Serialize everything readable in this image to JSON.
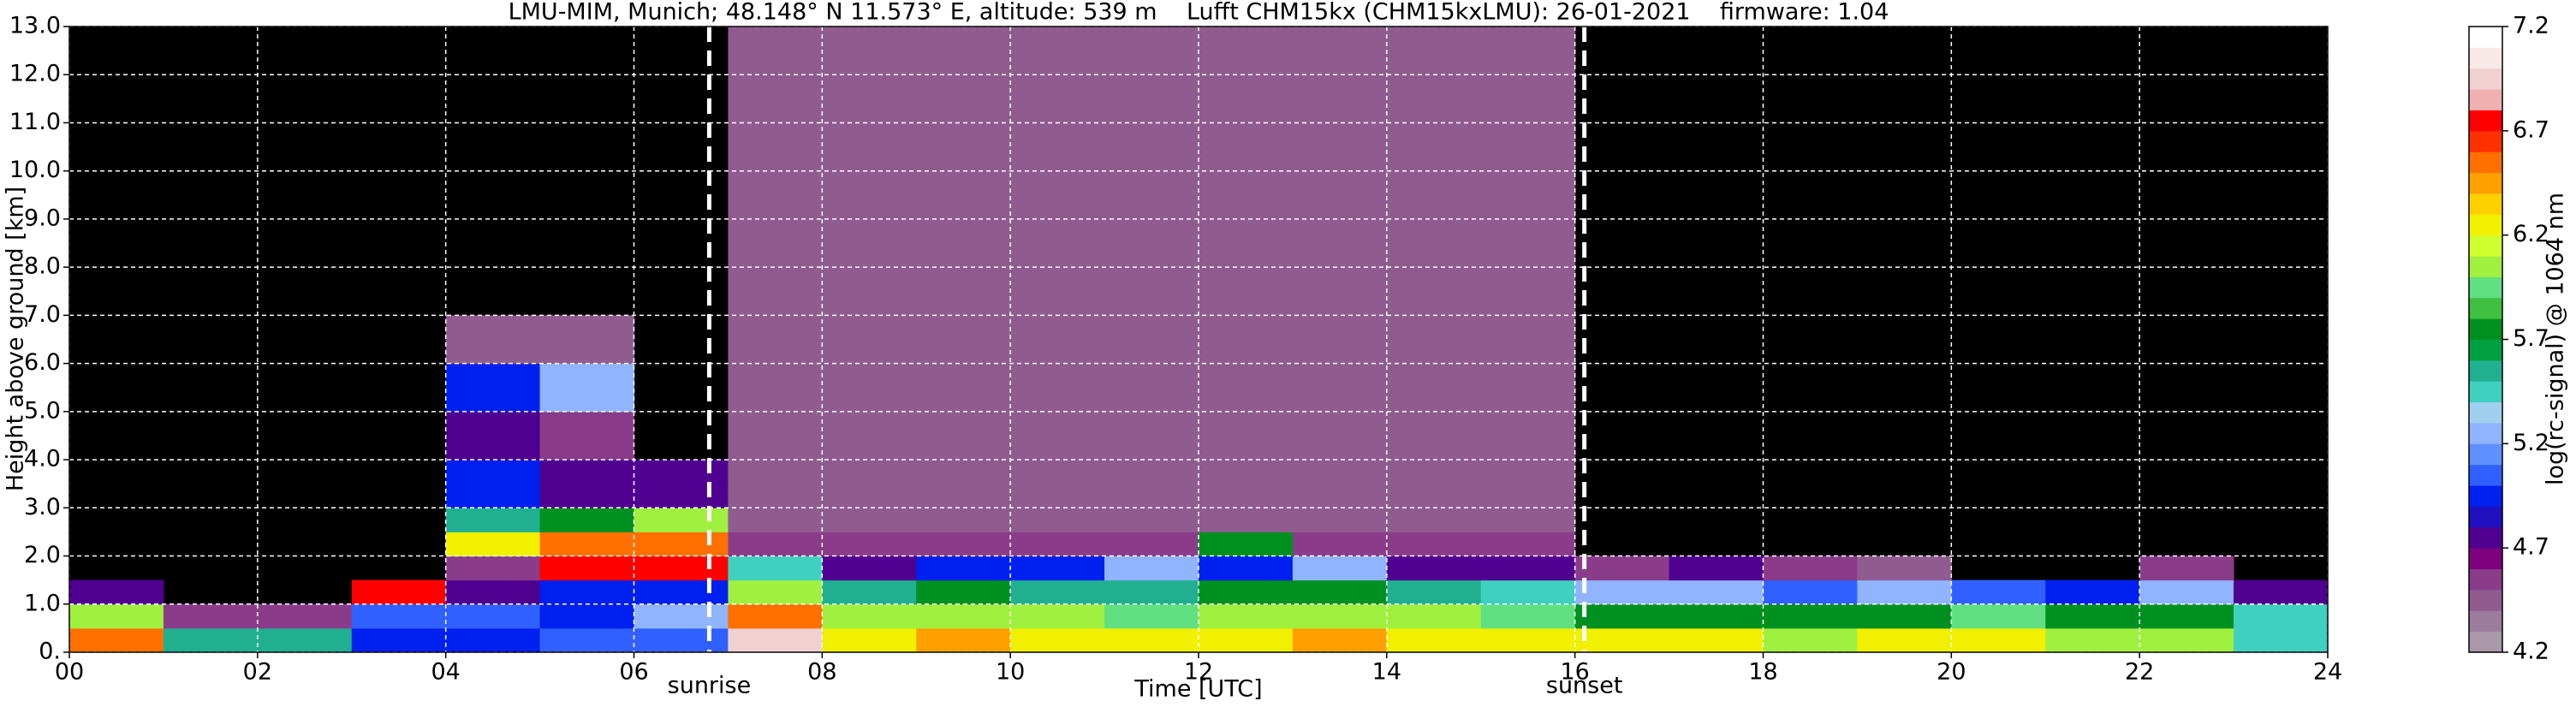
{
  "chart_data": {
    "type": "heatmap",
    "title": "LMU-MIM, Munich; 48.148° N 11.573° E, altitude: 539 m    Lufft CHM15kx (CHM15kxLMU): 26-01-2021    firmware: 1.04",
    "xlabel": "Time [UTC]",
    "ylabel": "Height above ground [km]",
    "colorbar_label": "log(rc-signal) @ 1064 nm",
    "x": [
      0,
      1,
      2,
      3,
      4,
      5,
      6,
      7,
      8,
      9,
      10,
      11,
      12,
      13,
      14,
      15,
      16,
      17,
      18,
      19,
      20,
      21,
      22,
      23,
      24
    ],
    "y": [
      0,
      0.5,
      1,
      1.5,
      2,
      2.5,
      3,
      4,
      5,
      6,
      7,
      9,
      11,
      13
    ],
    "z": [
      [
        6.5,
        5.6,
        5.6,
        5.0,
        5.0,
        5.1,
        5.1,
        6.9,
        6.3,
        6.4,
        6.3,
        6.2,
        6.3,
        6.4,
        6.3,
        6.2,
        6.3,
        6.2,
        6.1,
        6.2,
        6.2,
        6.1,
        6.0,
        5.5
      ],
      [
        6.0,
        4.6,
        4.6,
        5.1,
        5.1,
        5.0,
        5.2,
        6.5,
        6.0,
        6.1,
        6.0,
        5.9,
        6.0,
        6.1,
        6.0,
        5.9,
        5.8,
        5.8,
        5.7,
        5.8,
        5.9,
        5.8,
        5.7,
        5.4
      ],
      [
        4.8,
        null,
        null,
        6.8,
        4.8,
        4.9,
        4.9,
        6.0,
        5.6,
        5.7,
        5.6,
        5.6,
        5.7,
        5.8,
        5.6,
        5.5,
        5.2,
        5.3,
        5.1,
        5.2,
        5.1,
        5.0,
        5.2,
        4.8
      ],
      [
        null,
        null,
        null,
        null,
        4.6,
        6.7,
        6.8,
        5.5,
        4.8,
        4.9,
        5.0,
        5.2,
        4.9,
        5.3,
        4.8,
        4.7,
        4.6,
        4.7,
        4.6,
        4.5,
        null,
        null,
        4.6,
        null
      ],
      [
        null,
        null,
        null,
        null,
        6.2,
        6.5,
        6.6,
        4.6,
        4.6,
        4.6,
        4.6,
        4.6,
        5.8,
        4.6,
        4.6,
        4.6,
        null,
        null,
        null,
        null,
        null,
        null,
        null,
        null
      ],
      [
        null,
        null,
        null,
        null,
        5.6,
        5.8,
        6.0,
        4.5,
        4.5,
        4.5,
        4.5,
        4.5,
        4.5,
        4.5,
        4.5,
        4.5,
        null,
        null,
        null,
        null,
        null,
        null,
        null,
        null
      ],
      [
        null,
        null,
        null,
        null,
        5.0,
        4.8,
        4.7,
        4.5,
        4.5,
        4.5,
        4.5,
        4.5,
        4.5,
        4.5,
        4.5,
        4.5,
        null,
        null,
        null,
        null,
        null,
        null,
        null,
        null
      ],
      [
        null,
        null,
        null,
        null,
        4.7,
        4.6,
        null,
        4.5,
        4.5,
        4.5,
        4.5,
        4.5,
        4.5,
        4.5,
        4.5,
        4.5,
        null,
        null,
        null,
        null,
        null,
        null,
        null,
        null
      ],
      [
        null,
        null,
        null,
        null,
        5.0,
        5.2,
        null,
        4.5,
        4.5,
        4.5,
        4.5,
        4.5,
        4.5,
        4.5,
        4.5,
        4.5,
        null,
        null,
        null,
        null,
        null,
        null,
        null,
        null
      ],
      [
        null,
        null,
        null,
        null,
        4.5,
        4.4,
        null,
        4.5,
        4.5,
        4.5,
        4.5,
        4.5,
        4.5,
        4.5,
        4.5,
        4.5,
        null,
        null,
        null,
        null,
        null,
        null,
        null,
        null
      ],
      [
        null,
        null,
        null,
        null,
        null,
        null,
        null,
        4.5,
        4.5,
        4.5,
        4.5,
        4.5,
        4.5,
        4.5,
        4.5,
        4.5,
        null,
        null,
        null,
        null,
        null,
        null,
        null,
        null
      ],
      [
        null,
        null,
        null,
        null,
        null,
        null,
        null,
        4.5,
        4.5,
        4.5,
        4.5,
        4.5,
        4.5,
        4.5,
        4.5,
        4.5,
        null,
        null,
        null,
        null,
        null,
        null,
        null,
        null
      ],
      [
        null,
        null,
        null,
        null,
        null,
        null,
        null,
        4.5,
        4.5,
        4.5,
        4.5,
        4.5,
        4.5,
        4.5,
        4.5,
        4.5,
        null,
        null,
        null,
        null,
        null,
        null,
        null,
        null
      ]
    ],
    "xlim": [
      0,
      24
    ],
    "ylim": [
      0,
      13
    ],
    "zlim": [
      4.2,
      7.2
    ],
    "xticks": [
      {
        "value": 0,
        "label": "00"
      },
      {
        "value": 2,
        "label": "02"
      },
      {
        "value": 4,
        "label": "04"
      },
      {
        "value": 6,
        "label": "06"
      },
      {
        "value": 8,
        "label": "08"
      },
      10,
      12,
      14,
      16,
      18,
      20,
      22,
      24
    ],
    "yticks": [
      {
        "value": 0,
        "label": "0."
      },
      {
        "value": 1,
        "label": "1.0"
      },
      {
        "value": 2,
        "label": "2.0"
      },
      {
        "value": 3,
        "label": "3.0"
      },
      {
        "value": 4,
        "label": "4.0"
      },
      {
        "value": 5,
        "label": "5.0"
      },
      {
        "value": 6,
        "label": "6.0"
      },
      {
        "value": 7,
        "label": "7.0"
      },
      {
        "value": 8,
        "label": "8.0"
      },
      {
        "value": 9,
        "label": "9.0"
      },
      {
        "value": 10,
        "label": "10.0"
      },
      {
        "value": 11,
        "label": "11.0"
      },
      {
        "value": 12,
        "label": "12.0"
      },
      {
        "value": 13,
        "label": "13.0"
      }
    ],
    "zticks": [
      4.2,
      4.7,
      5.2,
      5.7,
      6.2,
      6.7,
      7.2
    ],
    "colors": [
      "#a898a8",
      "#9c7c9c",
      "#905c90",
      "#8a3c8a",
      "#7f007f",
      "#500090",
      "#2010c0",
      "#0020f0",
      "#3060ff",
      "#6090ff",
      "#90b4ff",
      "#a0d0f0",
      "#40d0c0",
      "#20b090",
      "#00a040",
      "#009020",
      "#40c040",
      "#60e080",
      "#a0f040",
      "#d0ff30",
      "#f0f000",
      "#ffd000",
      "#ffa000",
      "#ff7000",
      "#ff3000",
      "#ff0000",
      "#f0b0b0",
      "#f0d0d0",
      "#f8e8e8",
      "#ffffff"
    ],
    "background": "#000000",
    "grid": true,
    "annotations": [
      {
        "text": "sunrise",
        "x": 6.8
      },
      {
        "text": "sunset",
        "x": 16.1
      }
    ]
  }
}
